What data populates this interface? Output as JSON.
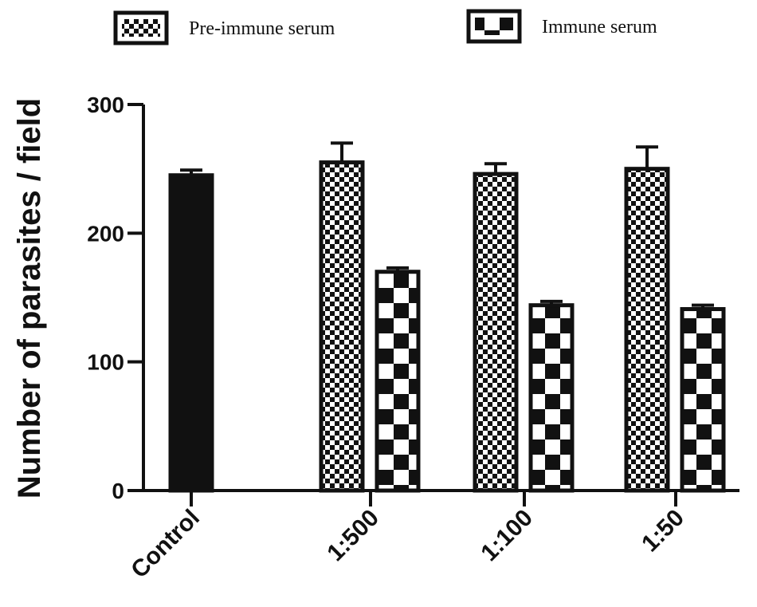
{
  "chart_data": {
    "type": "bar",
    "ylabel": "Number of parasites / field",
    "xlabel": "",
    "ylim": [
      0,
      300
    ],
    "yticks": [
      0,
      100,
      200,
      300
    ],
    "grid": false,
    "legend_position": "top",
    "categories": [
      "Control",
      "1:500",
      "1:100",
      "1:50"
    ],
    "series": [
      {
        "name": "Control",
        "pattern": "solid-black",
        "values": [
          245,
          null,
          null,
          null
        ],
        "errors": [
          4,
          null,
          null,
          null
        ]
      },
      {
        "name": "Pre-immune serum",
        "pattern": "fine-checker",
        "values": [
          null,
          255,
          246,
          250
        ],
        "errors": [
          null,
          15,
          8,
          17
        ]
      },
      {
        "name": "Immune serum",
        "pattern": "coarse-checker",
        "values": [
          null,
          170,
          144,
          141
        ],
        "errors": [
          null,
          3,
          3,
          3
        ]
      }
    ],
    "legend": [
      {
        "label": "Pre-immune serum",
        "pattern": "fine-checker"
      },
      {
        "label": "Immune serum",
        "pattern": "coarse-checker"
      }
    ]
  }
}
